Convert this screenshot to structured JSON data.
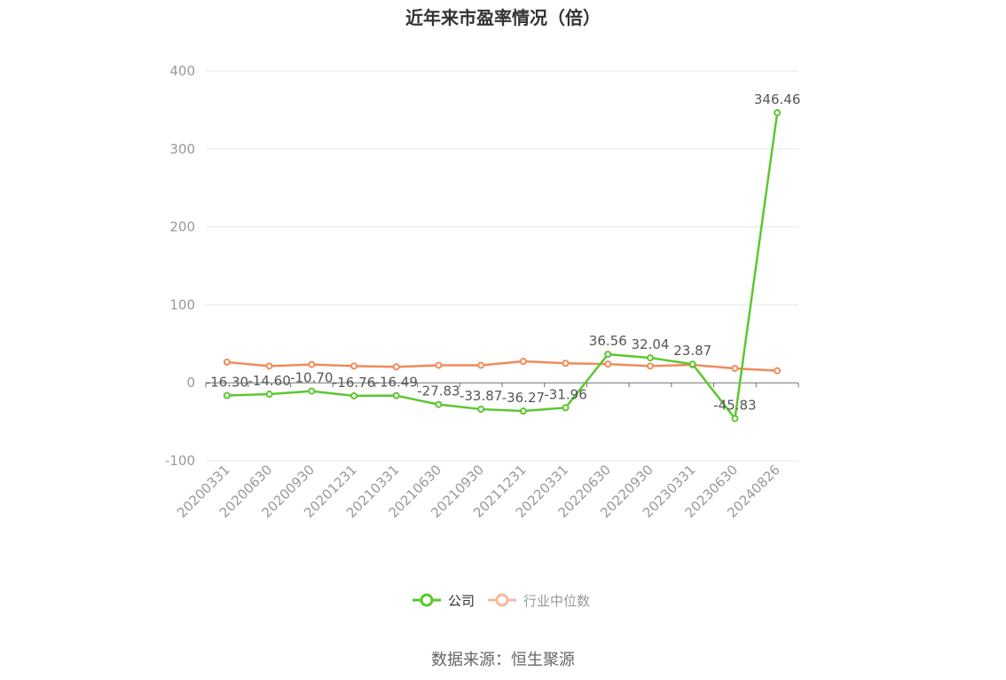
{
  "chart_data": {
    "type": "line",
    "title": "近年来市盈率情况（倍）",
    "categories": [
      "20200331",
      "20200630",
      "20200930",
      "20201231",
      "20210331",
      "20210630",
      "20210930",
      "20211231",
      "20220331",
      "20220630",
      "20220930",
      "20230331",
      "20230630",
      "20240826"
    ],
    "ylim": [
      -100,
      400
    ],
    "yticks": [
      -100,
      0,
      100,
      200,
      300,
      400
    ],
    "grid": true,
    "legend_position": "bottom",
    "series": [
      {
        "name": "公司",
        "color": "#5cc72f",
        "values": [
          -16.3,
          -14.6,
          -10.7,
          -16.76,
          -16.49,
          -27.83,
          -33.87,
          -36.27,
          -31.96,
          36.56,
          32.04,
          23.87,
          -45.83,
          346.46
        ],
        "labels": [
          "-16.30",
          "-14.60",
          "-10.70",
          "-16.76",
          "-16.49",
          "-27.83",
          "-33.87",
          "-36.27",
          "-31.96",
          "36.56",
          "32.04",
          "23.87",
          "-45.83",
          "346.46"
        ]
      },
      {
        "name": "行业中位数",
        "color": "#f28a5b",
        "values": [
          26.5,
          21.5,
          23.5,
          21.5,
          20.5,
          22.5,
          22.5,
          27.5,
          25.0,
          24.0,
          21.5,
          23.0,
          18.5,
          15.5
        ]
      }
    ]
  },
  "source": "数据来源：恒生聚源"
}
